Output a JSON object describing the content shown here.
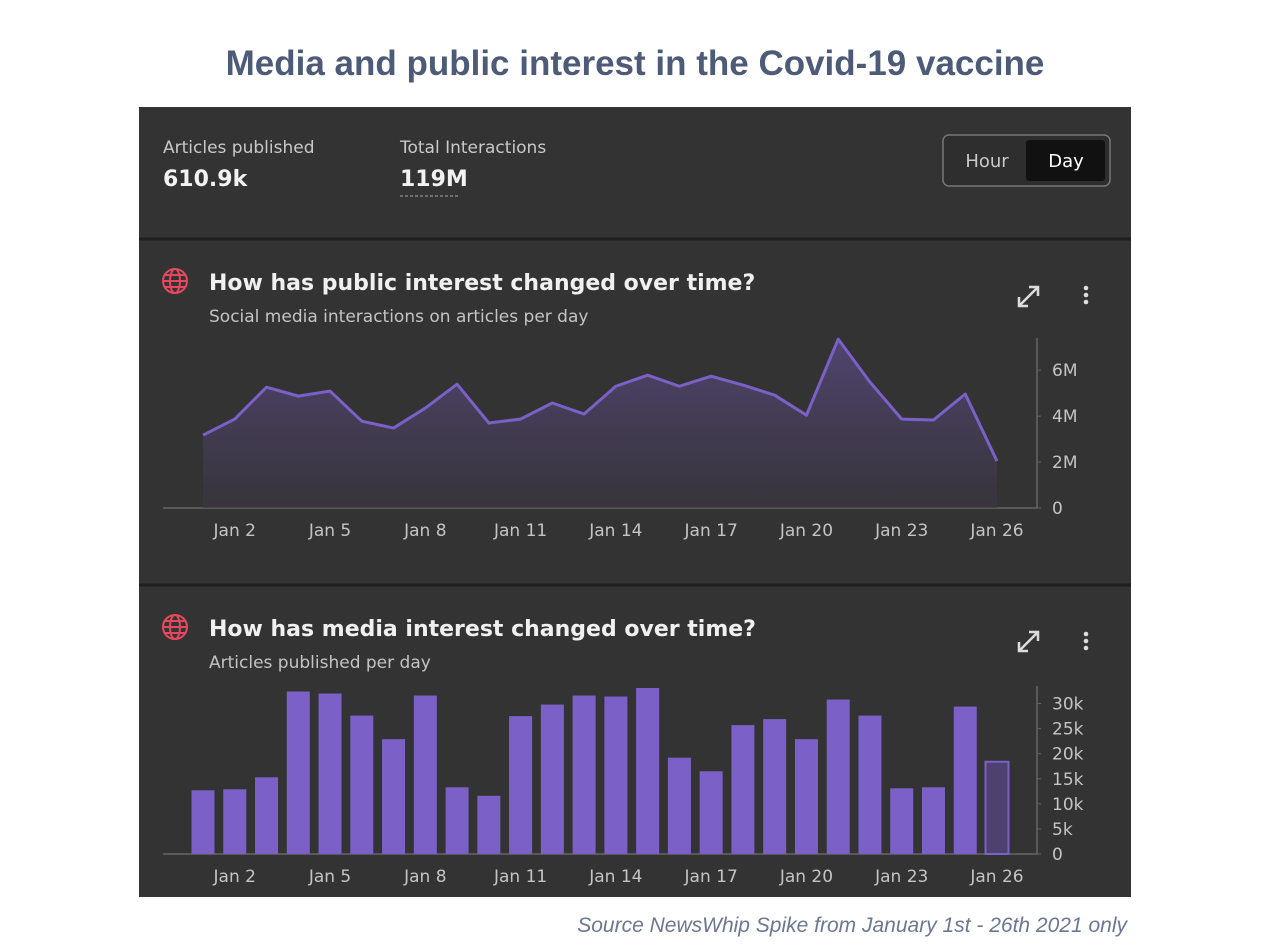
{
  "header": {
    "title": "Media and public interest in the Covid-19 vaccine"
  },
  "stats": [
    {
      "label": "Articles published",
      "value": "610.9k"
    },
    {
      "label": "Total Interactions",
      "value": "119M"
    }
  ],
  "toggle": [
    "Hour",
    "Day"
  ],
  "source": "Source NewsWhip Spike from January 1st - 26th 2021 only",
  "chart_data": [
    {
      "type": "area",
      "title": "How has public interest changed over time?",
      "subtitle": "Social media interactions on articles per day",
      "categories": [
        null,
        "Jan 2",
        null,
        null,
        "Jan 5",
        null,
        null,
        "Jan 8",
        null,
        null,
        "Jan 11",
        null,
        null,
        "Jan 14",
        null,
        null,
        "Jan 17",
        null,
        null,
        "Jan 20",
        null,
        null,
        "Jan 23",
        null,
        null,
        "Jan 26"
      ],
      "values": [
        3170000,
        3870000,
        5260000,
        4870000,
        5090000,
        3780000,
        3480000,
        4350000,
        5390000,
        3700000,
        3870000,
        4570000,
        4090000,
        5300000,
        5780000,
        5300000,
        5740000,
        5350000,
        4910000,
        4040000,
        7350000,
        5480000,
        3870000,
        3830000,
        4960000,
        2040000
      ],
      "color": "#7b60c8",
      "ylim": [
        0,
        7400000
      ],
      "yticks": [
        0,
        {
          "value": 2000000,
          "label": "2M"
        },
        {
          "value": 4000000,
          "label": "4M"
        },
        {
          "value": 6000000,
          "label": "6M"
        }
      ]
    },
    {
      "type": "bar",
      "title": "How has media interest changed over time?",
      "subtitle": "Articles published per day",
      "categories": [
        null,
        "Jan 2",
        null,
        null,
        "Jan 5",
        null,
        null,
        "Jan 8",
        null,
        null,
        "Jan 11",
        null,
        null,
        "Jan 14",
        null,
        null,
        "Jan 17",
        null,
        null,
        "Jan 20",
        null,
        null,
        "Jan 23",
        null,
        null,
        "Jan 26"
      ],
      "values": [
        12700,
        12900,
        15300,
        32400,
        32000,
        27600,
        22900,
        31600,
        13300,
        11600,
        27500,
        29800,
        31600,
        31400,
        33100,
        19200,
        16500,
        25700,
        26900,
        22900,
        30800,
        27600,
        13100,
        13300,
        29400,
        18400
      ],
      "color": "#7b60c8",
      "partial_color": "#4f416f",
      "ylim": [
        0,
        33500
      ],
      "yticks": [
        0,
        {
          "value": 5000,
          "label": "5k"
        },
        {
          "value": 10000,
          "label": "10k"
        },
        {
          "value": 15000,
          "label": "15k"
        },
        {
          "value": 20000,
          "label": "20k"
        },
        {
          "value": 25000,
          "label": "25k"
        },
        {
          "value": 30000,
          "label": "30k"
        }
      ]
    }
  ]
}
